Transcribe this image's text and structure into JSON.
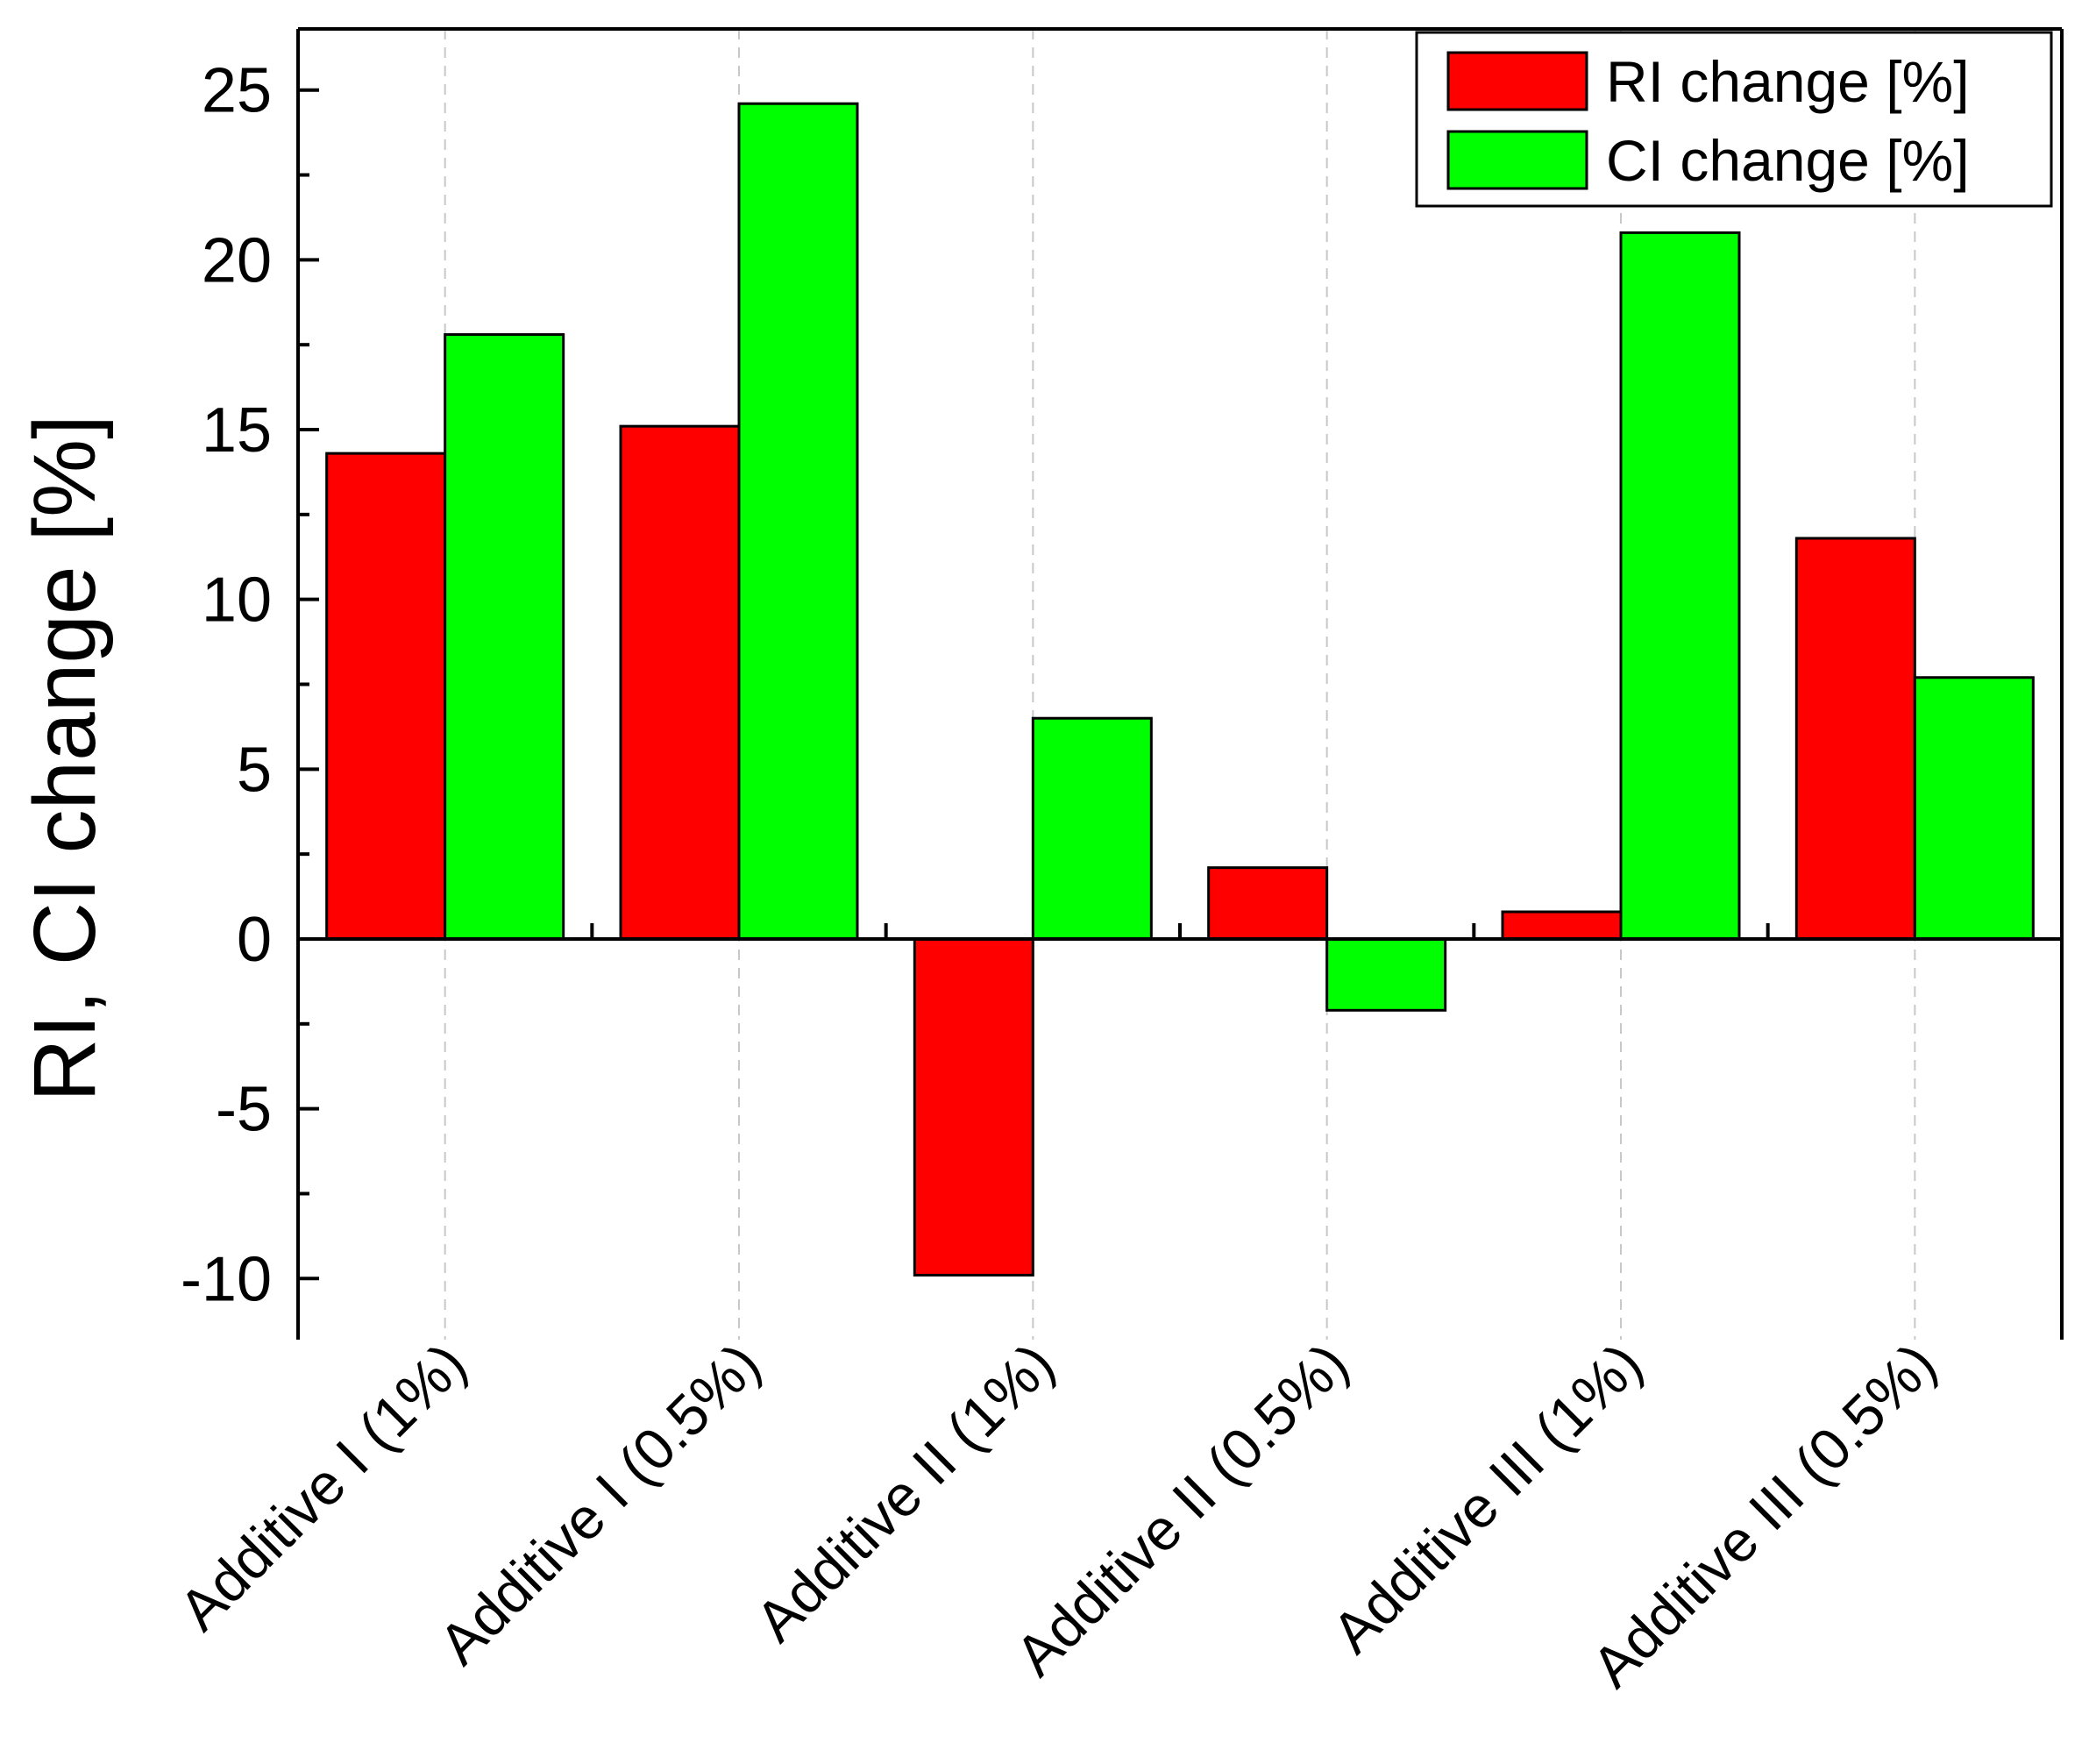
{
  "chart_data": {
    "type": "bar",
    "title": "",
    "xlabel": "",
    "ylabel": "RI, CI change [%]",
    "ylim": [
      -11.8,
      26.8
    ],
    "yticks": [
      -10,
      -5,
      0,
      5,
      10,
      15,
      20,
      25
    ],
    "ytick_labels": [
      "-10",
      "-5",
      "0",
      "5",
      "10",
      "15",
      "20",
      "25"
    ],
    "grid": "vertical dashed at category centers",
    "legend_position": "top-right",
    "categories": [
      "Additive I (1%)",
      "Additive I (0.5%)",
      "Additive II (1%)",
      "Additive II (0.5%)",
      "Additive III (1%)",
      "Additive III (0.5%)"
    ],
    "series": [
      {
        "name": "RI change [%]",
        "color": "#ff0000",
        "values": [
          14.3,
          15.1,
          -9.9,
          2.1,
          0.8,
          11.8
        ]
      },
      {
        "name": "CI change [%]",
        "color": "#00ff00",
        "values": [
          17.8,
          24.6,
          6.5,
          -2.1,
          20.8,
          7.7
        ]
      }
    ]
  }
}
